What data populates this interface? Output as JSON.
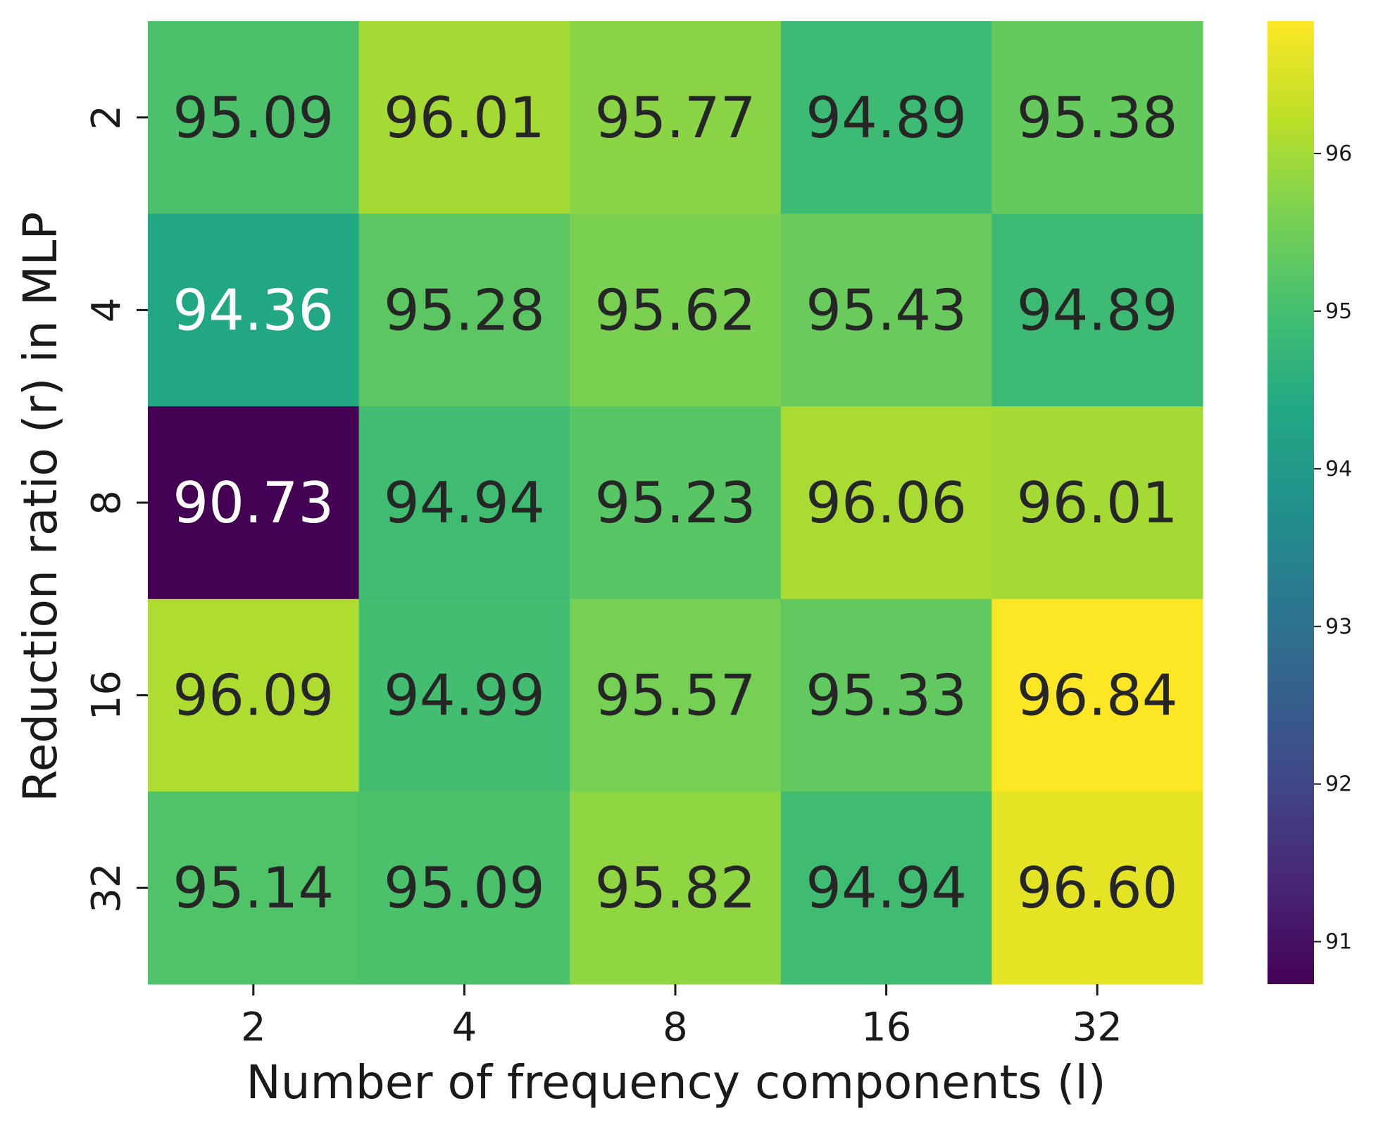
{
  "chart_data": {
    "type": "heatmap",
    "colormap": "viridis",
    "xlabel": "Number of frequency components (l)",
    "ylabel": "Reduction ratio (r) in MLP",
    "x_categories": [
      "2",
      "4",
      "8",
      "16",
      "32"
    ],
    "y_categories": [
      "2",
      "4",
      "8",
      "16",
      "32"
    ],
    "values": [
      [
        95.09,
        96.01,
        95.77,
        94.89,
        95.38
      ],
      [
        94.36,
        95.28,
        95.62,
        95.43,
        94.89
      ],
      [
        90.73,
        94.94,
        95.23,
        96.06,
        96.01
      ],
      [
        96.09,
        94.99,
        95.57,
        95.33,
        96.84
      ],
      [
        95.14,
        95.09,
        95.82,
        94.94,
        96.6
      ]
    ],
    "cell_labels": [
      [
        "95.09",
        "96.01",
        "95.77",
        "94.89",
        "95.38"
      ],
      [
        "94.36",
        "95.28",
        "95.62",
        "95.43",
        "94.89"
      ],
      [
        "90.73",
        "94.94",
        "95.23",
        "96.06",
        "96.01"
      ],
      [
        "96.09",
        "94.99",
        "95.57",
        "95.33",
        "96.84"
      ],
      [
        "95.14",
        "95.09",
        "95.82",
        "94.94",
        "96.60"
      ]
    ],
    "colorbar": {
      "range": [
        90.73,
        96.84
      ],
      "ticks": [
        "91",
        "92",
        "93",
        "94",
        "95",
        "96"
      ]
    },
    "colors": {
      "dark_text": "#262626",
      "light_text": "#ffffff"
    }
  }
}
